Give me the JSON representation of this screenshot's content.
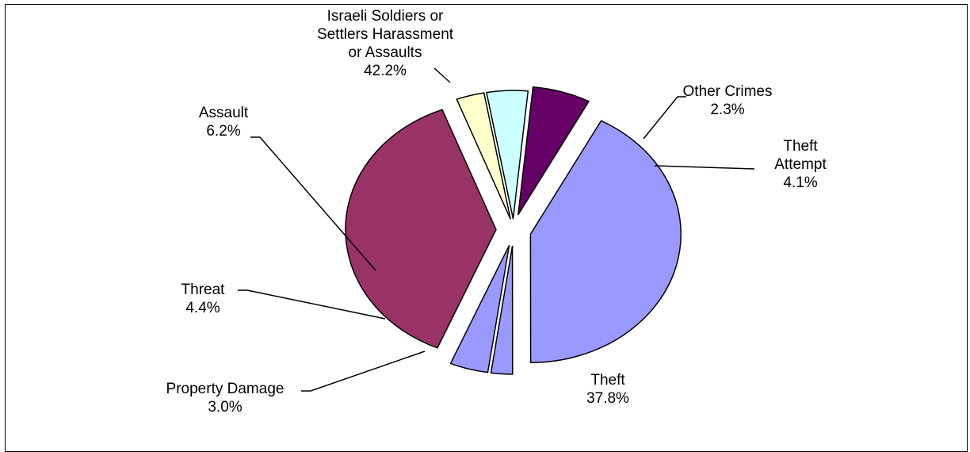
{
  "chart_data": {
    "type": "pie",
    "title": "",
    "slices": [
      {
        "label_lines": [
          "Israeli Soldiers or",
          "Settlers Harassment",
          "or Assaults"
        ],
        "value": 42.2,
        "value_label": "42.2%",
        "color": "#9999FF"
      },
      {
        "label_lines": [
          "Other Crimes"
        ],
        "value": 2.3,
        "value_label": "2.3%",
        "color": "#9999FF"
      },
      {
        "label_lines": [
          "Theft",
          "Attempt"
        ],
        "value": 4.1,
        "value_label": "4.1%",
        "color": "#9999FF"
      },
      {
        "label_lines": [
          "Theft"
        ],
        "value": 37.8,
        "value_label": "37.8%",
        "color": "#993366"
      },
      {
        "label_lines": [
          "Property Damage"
        ],
        "value": 3.0,
        "value_label": "3.0%",
        "color": "#FFFFCC"
      },
      {
        "label_lines": [
          "Threat"
        ],
        "value": 4.4,
        "value_label": "4.4%",
        "color": "#CCFFFF"
      },
      {
        "label_lines": [
          "Assault"
        ],
        "value": 6.2,
        "value_label": "6.2%",
        "color": "#660066"
      }
    ],
    "slice_border_color": "#000000",
    "legend": "none"
  }
}
